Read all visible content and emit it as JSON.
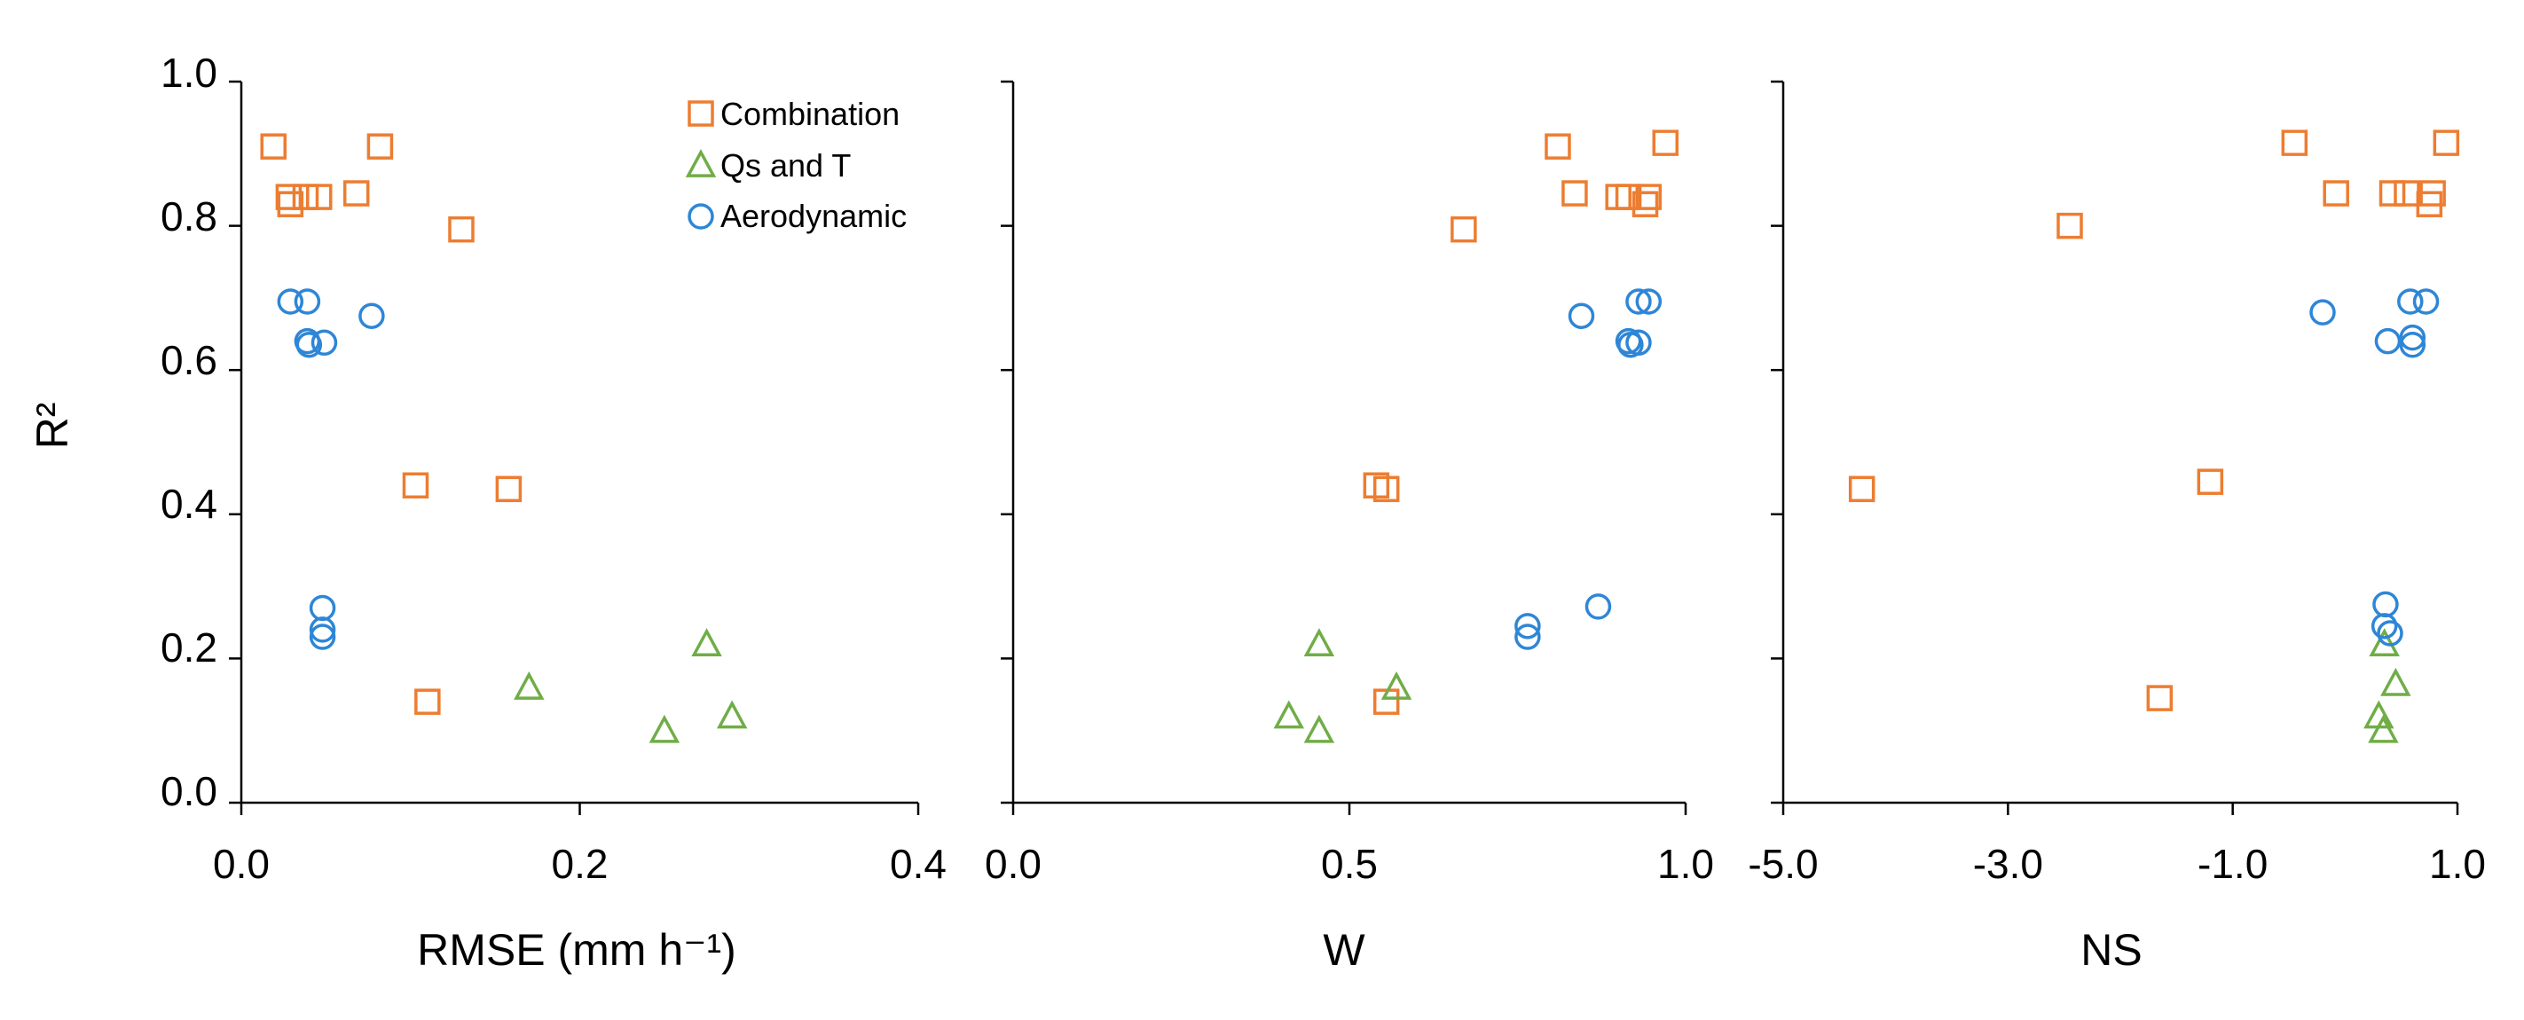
{
  "figure": {
    "shared_ylabel": "R²",
    "y_ticks": [
      "0.0",
      "0.2",
      "0.4",
      "0.6",
      "0.8",
      "1.0"
    ],
    "legend": {
      "placement": "top-right of first panel",
      "entries": [
        {
          "name": "Combination",
          "marker": "square",
          "color": "#ED7D31"
        },
        {
          "name": "Qs and T",
          "marker": "triangle",
          "color": "#70AD47"
        },
        {
          "name": "Aerodynamic",
          "marker": "circle",
          "color": "#2E86D6"
        }
      ]
    }
  },
  "chart_data": [
    {
      "type": "scatter",
      "title": "",
      "xlabel": "RMSE (mm h⁻¹)",
      "ylabel": "R²",
      "xlim": [
        0,
        0.4
      ],
      "ylim": [
        0,
        1.0
      ],
      "x_ticks": [
        0.0,
        0.2,
        0.4
      ],
      "x_tick_labels": [
        "0.0",
        "0.2",
        "0.4"
      ],
      "series": [
        {
          "name": "Combination",
          "points": [
            [
              0.019,
              0.91
            ],
            [
              0.082,
              0.91
            ],
            [
              0.028,
              0.84
            ],
            [
              0.038,
              0.84
            ],
            [
              0.046,
              0.84
            ],
            [
              0.068,
              0.845
            ],
            [
              0.029,
              0.83
            ],
            [
              0.13,
              0.795
            ],
            [
              0.103,
              0.44
            ],
            [
              0.158,
              0.435
            ],
            [
              0.11,
              0.14
            ]
          ]
        },
        {
          "name": "Qs and T",
          "points": [
            [
              0.17,
              0.16
            ],
            [
              0.275,
              0.22
            ],
            [
              0.25,
              0.1
            ],
            [
              0.29,
              0.12
            ]
          ]
        },
        {
          "name": "Aerodynamic",
          "points": [
            [
              0.029,
              0.695
            ],
            [
              0.039,
              0.695
            ],
            [
              0.039,
              0.64
            ],
            [
              0.04,
              0.635
            ],
            [
              0.049,
              0.638
            ],
            [
              0.077,
              0.675
            ],
            [
              0.048,
              0.27
            ],
            [
              0.048,
              0.24
            ],
            [
              0.048,
              0.23
            ]
          ]
        }
      ]
    },
    {
      "type": "scatter",
      "title": "",
      "xlabel": "W",
      "ylabel": "R²",
      "xlim": [
        0,
        1.0
      ],
      "ylim": [
        0,
        1.0
      ],
      "x_ticks": [
        0.0,
        0.5,
        1.0
      ],
      "x_tick_labels": [
        "0.0",
        "0.5",
        "1.0"
      ],
      "series": [
        {
          "name": "Combination",
          "points": [
            [
              0.81,
              0.91
            ],
            [
              0.97,
              0.915
            ],
            [
              0.835,
              0.845
            ],
            [
              0.9,
              0.84
            ],
            [
              0.915,
              0.84
            ],
            [
              0.945,
              0.84
            ],
            [
              0.94,
              0.83
            ],
            [
              0.67,
              0.795
            ],
            [
              0.54,
              0.44
            ],
            [
              0.555,
              0.435
            ],
            [
              0.555,
              0.14
            ]
          ]
        },
        {
          "name": "Qs and T",
          "points": [
            [
              0.41,
              0.12
            ],
            [
              0.455,
              0.22
            ],
            [
              0.455,
              0.1
            ],
            [
              0.57,
              0.16
            ]
          ]
        },
        {
          "name": "Aerodynamic",
          "points": [
            [
              0.93,
              0.695
            ],
            [
              0.945,
              0.695
            ],
            [
              0.915,
              0.64
            ],
            [
              0.918,
              0.635
            ],
            [
              0.93,
              0.638
            ],
            [
              0.845,
              0.675
            ],
            [
              0.87,
              0.272
            ],
            [
              0.765,
              0.245
            ],
            [
              0.765,
              0.23
            ]
          ]
        }
      ]
    },
    {
      "type": "scatter",
      "title": "",
      "xlabel": "NS",
      "ylabel": "R²",
      "xlim": [
        -5.0,
        1.0
      ],
      "ylim": [
        0,
        1.0
      ],
      "x_ticks": [
        -5.0,
        -3.0,
        -1.0,
        1.0
      ],
      "x_tick_labels": [
        "-5.0",
        "-3.0",
        "-1.0",
        "1.0"
      ],
      "series": [
        {
          "name": "Combination",
          "points": [
            [
              -0.45,
              0.915
            ],
            [
              0.9,
              0.915
            ],
            [
              -0.08,
              0.845
            ],
            [
              0.42,
              0.845
            ],
            [
              0.55,
              0.845
            ],
            [
              0.78,
              0.845
            ],
            [
              0.75,
              0.83
            ],
            [
              -2.45,
              0.8
            ],
            [
              -4.3,
              0.435
            ],
            [
              -1.2,
              0.445
            ],
            [
              -1.65,
              0.145
            ]
          ]
        },
        {
          "name": "Qs and T",
          "points": [
            [
              0.3,
              0.12
            ],
            [
              0.35,
              0.22
            ],
            [
              0.34,
              0.1
            ],
            [
              0.45,
              0.165
            ]
          ]
        },
        {
          "name": "Aerodynamic",
          "points": [
            [
              -0.2,
              0.68
            ],
            [
              0.58,
              0.695
            ],
            [
              0.72,
              0.695
            ],
            [
              0.38,
              0.64
            ],
            [
              0.6,
              0.645
            ],
            [
              0.6,
              0.635
            ],
            [
              0.36,
              0.275
            ],
            [
              0.35,
              0.245
            ],
            [
              0.4,
              0.235
            ]
          ]
        }
      ]
    }
  ]
}
